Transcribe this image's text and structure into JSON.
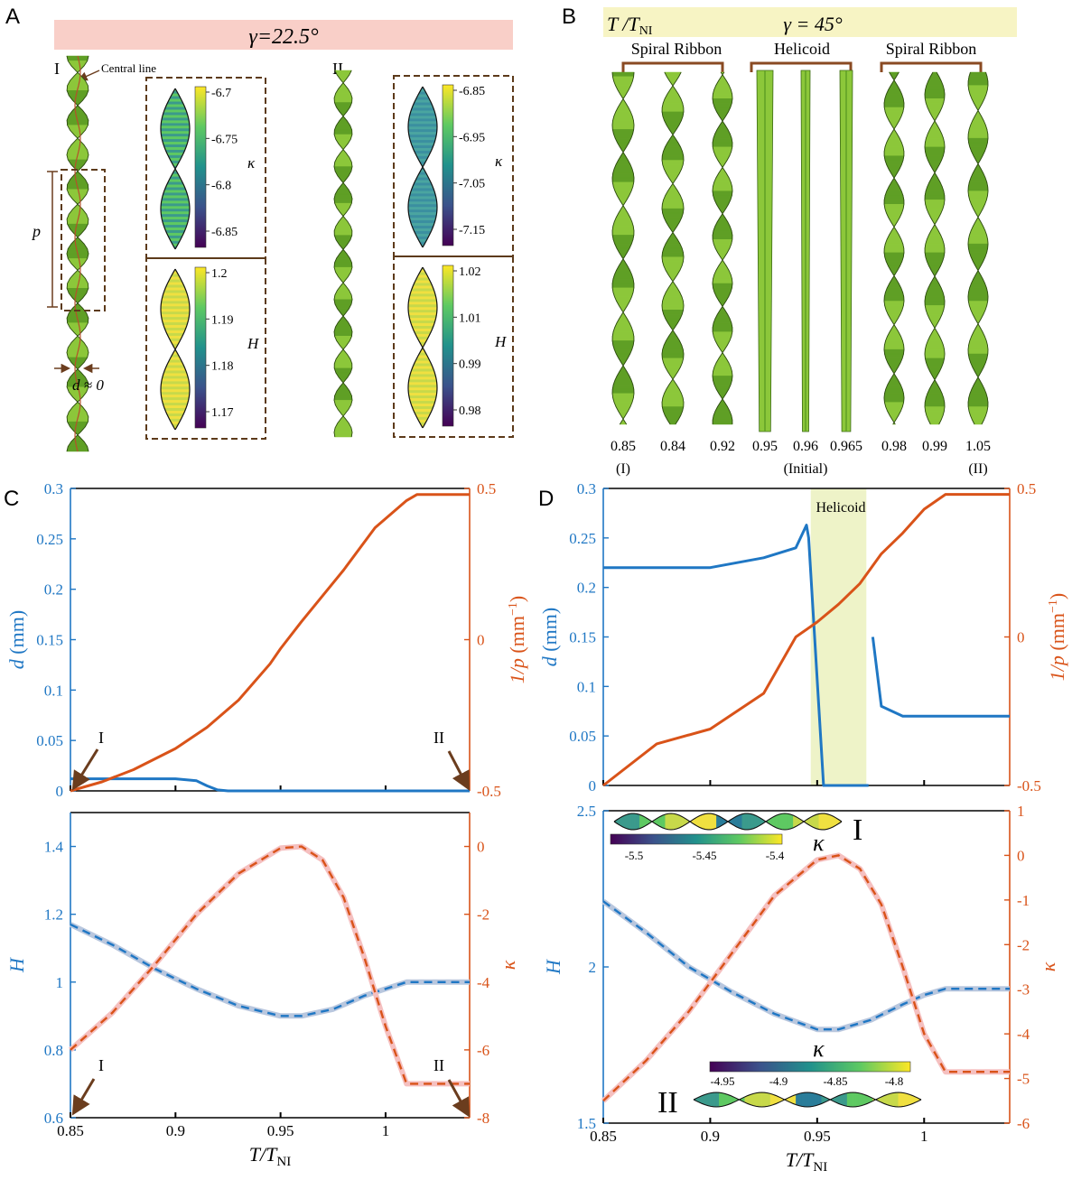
{
  "panels": {
    "A": {
      "letter": "A",
      "banner": "γ=22.5°",
      "banner_color": "#f9cfc8",
      "label_I": "I",
      "label_II": "II",
      "central_line": "Central line",
      "pitch_label": "p",
      "d_label": "d ≈ 0",
      "I_kappa_ticks": [
        "-6.7",
        "-6.75",
        "-6.8",
        "-6.85"
      ],
      "I_H_ticks": [
        "1.2",
        "1.19",
        "1.18",
        "1.17"
      ],
      "II_kappa_ticks": [
        "-6.85",
        "-6.95",
        "-7.05",
        "-7.15"
      ],
      "II_H_ticks": [
        "1.02",
        "1.01",
        "0.99",
        "0.98"
      ],
      "kappa_label": "κ",
      "H_label": "H"
    },
    "B": {
      "letter": "B",
      "banner_left": "T /T",
      "banner_left_sub": "NI",
      "banner": "γ = 45°",
      "banner_color": "#f7f4c4",
      "group_labels": [
        "Spiral Ribbon",
        "Helicoid",
        "Spiral Ribbon"
      ],
      "temps": [
        "0.85",
        "0.84",
        "0.92",
        "0.95",
        "0.96",
        "0.965",
        "0.98",
        "0.99",
        "1.05"
      ],
      "tags": [
        "(I)",
        "(Initial)",
        "(II)"
      ]
    },
    "C": {
      "letter": "C"
    },
    "D": {
      "letter": "D",
      "helicoid_label": "Helicoid",
      "inset_I_label": "I",
      "inset_II_label": "II",
      "inset_I_ticks": [
        "-5.5",
        "-5.45",
        "-5.4"
      ],
      "inset_II_ticks": [
        "-4.95",
        "-4.9",
        "-4.85",
        "-4.8"
      ],
      "kappa_label": "κ"
    }
  },
  "axis_text": {
    "d_label": "d",
    "d_unit": " (mm)",
    "invp_label": "1/p",
    "invp_unit": " (mm",
    "invp_exp": "−1",
    "invp_close": ")",
    "H_label": "H",
    "kappa_label": "κ",
    "x_label": "T/T",
    "x_sub": "NI",
    "I_marker": "I",
    "II_marker": "II"
  },
  "colors": {
    "blue": "#1f77c4",
    "orange": "#d95319",
    "arrow": "#6b3d1e",
    "ribbon": "#7cbc2c",
    "box": "#5c3a1a"
  },
  "chart_data": [
    {
      "id": "C-top",
      "type": "line",
      "xlim": [
        0.85,
        1.04
      ],
      "ylim_left": [
        0,
        0.3
      ],
      "ylim_right": [
        -0.5,
        0.5
      ],
      "left_ticks": [
        "0",
        "0.05",
        "0.1",
        "0.15",
        "0.2",
        "0.25",
        "0.3"
      ],
      "right_ticks": [
        "-0.5",
        "0",
        "0.5"
      ],
      "series": [
        {
          "axis": "left",
          "color": "#1f77c4",
          "x": [
            0.85,
            0.87,
            0.9,
            0.91,
            0.915,
            0.92,
            0.925,
            0.93,
            0.95,
            1.0,
            1.04
          ],
          "y": [
            0.012,
            0.012,
            0.012,
            0.01,
            0.005,
            0.001,
            0.0,
            0.0,
            0.0,
            0.0,
            0.0
          ]
        },
        {
          "axis": "right",
          "color": "#d95319",
          "x": [
            0.85,
            0.865,
            0.88,
            0.9,
            0.915,
            0.93,
            0.945,
            0.95,
            0.96,
            0.98,
            0.995,
            1.01,
            1.015,
            1.04
          ],
          "y": [
            -0.5,
            -0.47,
            -0.43,
            -0.36,
            -0.29,
            -0.2,
            -0.08,
            -0.03,
            0.06,
            0.23,
            0.37,
            0.46,
            0.48,
            0.48
          ]
        }
      ]
    },
    {
      "id": "C-bottom",
      "type": "line",
      "xlim": [
        0.85,
        1.04
      ],
      "ylim_left": [
        0.6,
        1.5
      ],
      "ylim_right": [
        -8,
        1
      ],
      "left_ticks": [
        "0.6",
        "0.8",
        "1",
        "1.2",
        "1.4"
      ],
      "right_ticks": [
        "-8",
        "-6",
        "-4",
        "-2",
        "0"
      ],
      "x_ticks": [
        "0.85",
        "0.9",
        "0.95",
        "1"
      ],
      "series": [
        {
          "axis": "left",
          "color": "#1f77c4",
          "dashed": true,
          "x": [
            0.85,
            0.87,
            0.89,
            0.91,
            0.93,
            0.95,
            0.96,
            0.975,
            0.99,
            1.0,
            1.01,
            1.04
          ],
          "y": [
            1.17,
            1.11,
            1.04,
            0.98,
            0.93,
            0.9,
            0.9,
            0.92,
            0.96,
            0.98,
            1.0,
            1.0
          ]
        },
        {
          "axis": "right",
          "color": "#d95319",
          "dashed": true,
          "x": [
            0.85,
            0.87,
            0.89,
            0.91,
            0.93,
            0.95,
            0.96,
            0.97,
            0.98,
            0.99,
            1.0,
            1.01,
            1.04
          ],
          "y": [
            -6.0,
            -4.9,
            -3.5,
            -2.0,
            -0.8,
            -0.05,
            0.0,
            -0.4,
            -1.5,
            -3.3,
            -5.3,
            -7.0,
            -7.0
          ]
        }
      ]
    },
    {
      "id": "D-top",
      "type": "line",
      "xlim": [
        0.85,
        1.04
      ],
      "ylim_left": [
        0,
        0.3
      ],
      "ylim_right": [
        -0.5,
        0.5
      ],
      "left_ticks": [
        "0",
        "0.05",
        "0.1",
        "0.15",
        "0.2",
        "0.25",
        "0.3"
      ],
      "right_ticks": [
        "-0.5",
        "0",
        "0.5"
      ],
      "shade_x": [
        0.947,
        0.973
      ],
      "shade_color": "#eef3c8",
      "series": [
        {
          "axis": "left",
          "color": "#1f77c4",
          "breaks": true,
          "x": [
            0.85,
            0.9,
            0.925,
            0.94,
            0.945,
            0.946,
            0.953,
            0.96,
            0.974,
            0.9745,
            0.976,
            0.98,
            0.99,
            1.04
          ],
          "y": [
            0.22,
            0.22,
            0.23,
            0.24,
            0.263,
            0.25,
            0.0,
            0.0,
            0.0,
            null,
            0.15,
            0.08,
            0.07,
            0.07
          ]
        },
        {
          "axis": "right",
          "color": "#d95319",
          "x": [
            0.85,
            0.875,
            0.9,
            0.925,
            0.94,
            0.95,
            0.96,
            0.97,
            0.98,
            0.99,
            1.0,
            1.01,
            1.04
          ],
          "y": [
            -0.5,
            -0.36,
            -0.31,
            -0.19,
            0.0,
            0.05,
            0.11,
            0.18,
            0.28,
            0.35,
            0.43,
            0.48,
            0.48
          ]
        }
      ]
    },
    {
      "id": "D-bottom",
      "type": "line",
      "xlim": [
        0.85,
        1.04
      ],
      "ylim_left": [
        1.5,
        2.5
      ],
      "ylim_right": [
        -6,
        1
      ],
      "left_ticks": [
        "1.5",
        "2",
        "2.5"
      ],
      "right_ticks": [
        "-6",
        "-5",
        "-4",
        "-3",
        "-2",
        "-1",
        "0",
        "1"
      ],
      "x_ticks": [
        "0.85",
        "0.9",
        "0.95",
        "1"
      ],
      "series": [
        {
          "axis": "left",
          "color": "#1f77c4",
          "dashed": true,
          "x": [
            0.85,
            0.87,
            0.89,
            0.91,
            0.93,
            0.95,
            0.96,
            0.975,
            0.99,
            1.0,
            1.01,
            1.04
          ],
          "y": [
            2.21,
            2.11,
            2.0,
            1.92,
            1.85,
            1.8,
            1.8,
            1.83,
            1.88,
            1.91,
            1.93,
            1.93
          ]
        },
        {
          "axis": "right",
          "color": "#d95319",
          "dashed": true,
          "x": [
            0.85,
            0.87,
            0.89,
            0.91,
            0.93,
            0.95,
            0.96,
            0.97,
            0.98,
            0.99,
            1.0,
            1.01,
            1.04
          ],
          "y": [
            -5.5,
            -4.6,
            -3.5,
            -2.2,
            -0.9,
            -0.1,
            0.0,
            -0.3,
            -1.1,
            -2.5,
            -4.0,
            -4.85,
            -4.85
          ]
        }
      ]
    }
  ]
}
